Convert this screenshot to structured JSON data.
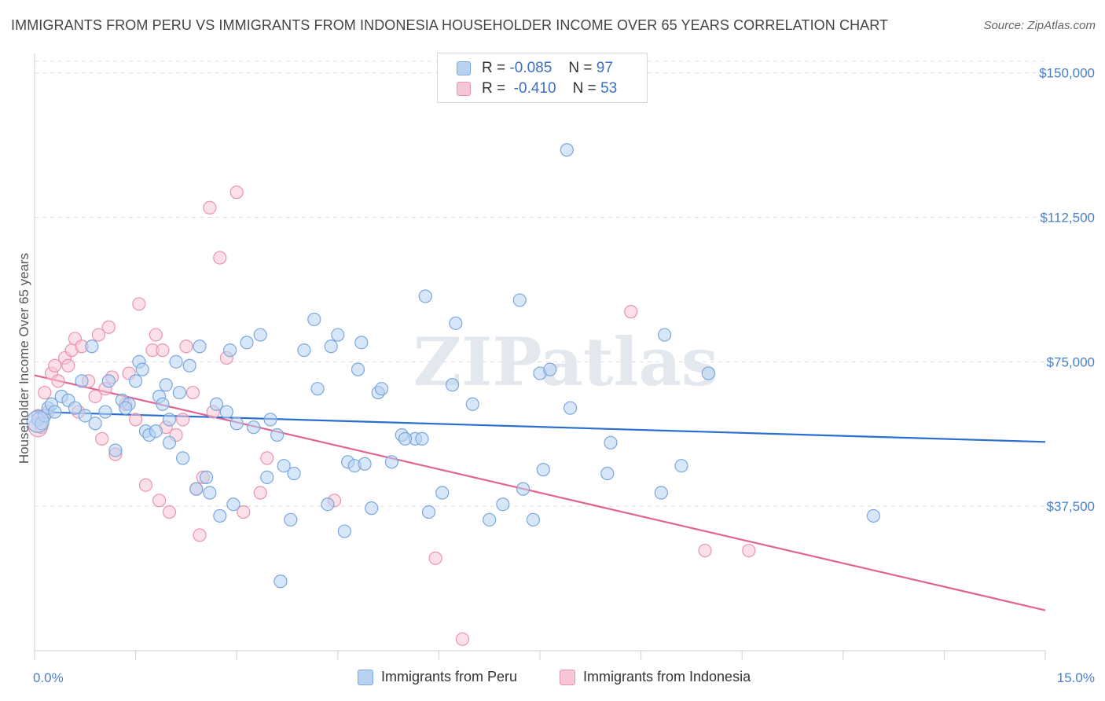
{
  "header": {
    "title": "IMMIGRANTS FROM PERU VS IMMIGRANTS FROM INDONESIA HOUSEHOLDER INCOME OVER 65 YEARS CORRELATION CHART",
    "source": "Source: ZipAtlas.com"
  },
  "watermark": "ZIPatlas",
  "legend": {
    "peru": {
      "r_label": "R =",
      "r_value": "-0.085",
      "n_label": "N =",
      "n_value": "97"
    },
    "indonesia": {
      "r_label": "R =",
      "r_value": "-0.410",
      "n_label": "N =",
      "n_value": "53"
    }
  },
  "bottom_legend": {
    "peru": "Immigrants from Peru",
    "indonesia": "Immigrants from Indonesia"
  },
  "colors": {
    "peru_fill": "#b8d3f2",
    "peru_stroke": "#7aa7de",
    "peru_line": "#2a6fcf",
    "indo_fill": "#f7c6d5",
    "indo_stroke": "#ea94ae",
    "indo_line": "#e0648f",
    "tick_text": "#4a80c8",
    "grid": "#dddddd"
  },
  "chart_data": {
    "type": "scatter",
    "title": "IMMIGRANTS FROM PERU VS IMMIGRANTS FROM INDONESIA HOUSEHOLDER INCOME OVER 65 YEARS CORRELATION CHART",
    "xlabel": "",
    "ylabel": "Householder Income Over 65 years",
    "xlim": [
      0,
      15
    ],
    "ylim": [
      0,
      153000
    ],
    "x_tick_labels": [
      "0.0%",
      "15.0%"
    ],
    "y_ticks": [
      37500,
      75000,
      112500,
      150000
    ],
    "y_tick_labels": [
      "$37,500",
      "$75,000",
      "$112,500",
      "$150,000"
    ],
    "grid": true,
    "legend_position": "top-center",
    "series": [
      {
        "name": "Immigrants from Peru",
        "R": -0.085,
        "N": 97,
        "trend": {
          "x": [
            0,
            15
          ],
          "y": [
            62000,
            54200
          ]
        },
        "points": [
          [
            0.05,
            60000
          ],
          [
            0.1,
            59000
          ],
          [
            0.15,
            61000
          ],
          [
            0.2,
            63000
          ],
          [
            0.25,
            64000
          ],
          [
            0.3,
            62000
          ],
          [
            0.4,
            66000
          ],
          [
            0.5,
            65000
          ],
          [
            0.6,
            63000
          ],
          [
            0.7,
            70000
          ],
          [
            0.75,
            61000
          ],
          [
            0.85,
            79000
          ],
          [
            0.9,
            59000
          ],
          [
            1.05,
            62000
          ],
          [
            1.1,
            70000
          ],
          [
            1.2,
            52000
          ],
          [
            1.3,
            65000
          ],
          [
            1.4,
            64000
          ],
          [
            1.5,
            70000
          ],
          [
            1.55,
            75000
          ],
          [
            1.6,
            73000
          ],
          [
            1.65,
            57000
          ],
          [
            1.7,
            56000
          ],
          [
            1.8,
            57000
          ],
          [
            1.85,
            66000
          ],
          [
            1.9,
            64000
          ],
          [
            1.95,
            69000
          ],
          [
            2.0,
            54000
          ],
          [
            2.1,
            75000
          ],
          [
            2.15,
            67000
          ],
          [
            2.2,
            50000
          ],
          [
            2.3,
            74000
          ],
          [
            2.4,
            42000
          ],
          [
            2.45,
            79000
          ],
          [
            2.55,
            45000
          ],
          [
            2.6,
            41000
          ],
          [
            2.7,
            64000
          ],
          [
            2.75,
            35000
          ],
          [
            2.85,
            62000
          ],
          [
            2.9,
            78000
          ],
          [
            2.95,
            38000
          ],
          [
            3.0,
            59000
          ],
          [
            3.15,
            80000
          ],
          [
            3.25,
            58000
          ],
          [
            3.35,
            82000
          ],
          [
            3.45,
            45000
          ],
          [
            3.5,
            60000
          ],
          [
            3.6,
            56000
          ],
          [
            3.7,
            48000
          ],
          [
            3.8,
            34000
          ],
          [
            3.85,
            46000
          ],
          [
            4.0,
            78000
          ],
          [
            4.15,
            86000
          ],
          [
            4.2,
            68000
          ],
          [
            4.35,
            38000
          ],
          [
            4.4,
            79000
          ],
          [
            4.5,
            82000
          ],
          [
            4.6,
            31000
          ],
          [
            4.65,
            49000
          ],
          [
            4.75,
            48000
          ],
          [
            4.8,
            73000
          ],
          [
            4.85,
            80000
          ],
          [
            5.0,
            37000
          ],
          [
            5.1,
            67000
          ],
          [
            5.15,
            68000
          ],
          [
            5.3,
            49000
          ],
          [
            5.45,
            56000
          ],
          [
            5.65,
            55000
          ],
          [
            5.75,
            55000
          ],
          [
            5.8,
            92000
          ],
          [
            5.85,
            36000
          ],
          [
            6.05,
            41000
          ],
          [
            6.2,
            69000
          ],
          [
            6.25,
            85000
          ],
          [
            6.5,
            64000
          ],
          [
            6.75,
            34000
          ],
          [
            6.95,
            38000
          ],
          [
            7.2,
            91000
          ],
          [
            7.25,
            42000
          ],
          [
            7.4,
            34000
          ],
          [
            7.5,
            72000
          ],
          [
            7.55,
            47000
          ],
          [
            7.65,
            73000
          ],
          [
            7.9,
            130000
          ],
          [
            7.95,
            63000
          ],
          [
            8.5,
            46000
          ],
          [
            8.55,
            54000
          ],
          [
            9.3,
            41000
          ],
          [
            9.35,
            82000
          ],
          [
            9.6,
            48000
          ],
          [
            10.0,
            72000
          ],
          [
            12.45,
            35000
          ],
          [
            3.65,
            18000
          ],
          [
            5.5,
            55000
          ],
          [
            4.9,
            48500
          ],
          [
            2.0,
            60000
          ],
          [
            1.35,
            63000
          ]
        ]
      },
      {
        "name": "Immigrants from Indonesia",
        "R": -0.41,
        "N": 53,
        "trend": {
          "x": [
            0,
            15
          ],
          "y": [
            71500,
            10500
          ]
        },
        "points": [
          [
            0.05,
            61000
          ],
          [
            0.1,
            58000
          ],
          [
            0.15,
            67000
          ],
          [
            0.2,
            62000
          ],
          [
            0.25,
            72000
          ],
          [
            0.3,
            74000
          ],
          [
            0.35,
            70000
          ],
          [
            0.45,
            76000
          ],
          [
            0.5,
            74000
          ],
          [
            0.55,
            78000
          ],
          [
            0.6,
            81000
          ],
          [
            0.65,
            62000
          ],
          [
            0.7,
            79000
          ],
          [
            0.8,
            70000
          ],
          [
            0.9,
            66000
          ],
          [
            0.95,
            82000
          ],
          [
            1.0,
            55000
          ],
          [
            1.05,
            68000
          ],
          [
            1.1,
            84000
          ],
          [
            1.15,
            71000
          ],
          [
            1.2,
            51000
          ],
          [
            1.35,
            64000
          ],
          [
            1.4,
            72000
          ],
          [
            1.5,
            60000
          ],
          [
            1.55,
            90000
          ],
          [
            1.65,
            43000
          ],
          [
            1.75,
            78000
          ],
          [
            1.8,
            82000
          ],
          [
            1.85,
            39000
          ],
          [
            1.9,
            78000
          ],
          [
            2.0,
            36000
          ],
          [
            2.1,
            56000
          ],
          [
            2.2,
            60000
          ],
          [
            2.25,
            79000
          ],
          [
            2.35,
            67000
          ],
          [
            2.4,
            42000
          ],
          [
            2.45,
            30000
          ],
          [
            2.5,
            45000
          ],
          [
            2.6,
            115000
          ],
          [
            2.65,
            62000
          ],
          [
            2.75,
            102000
          ],
          [
            2.85,
            76000
          ],
          [
            3.0,
            119000
          ],
          [
            3.1,
            36000
          ],
          [
            3.35,
            41000
          ],
          [
            3.45,
            50000
          ],
          [
            4.45,
            39000
          ],
          [
            5.95,
            24000
          ],
          [
            6.35,
            3000
          ],
          [
            8.85,
            88000
          ],
          [
            9.95,
            26000
          ],
          [
            10.6,
            26000
          ],
          [
            1.95,
            58000
          ]
        ]
      }
    ]
  }
}
